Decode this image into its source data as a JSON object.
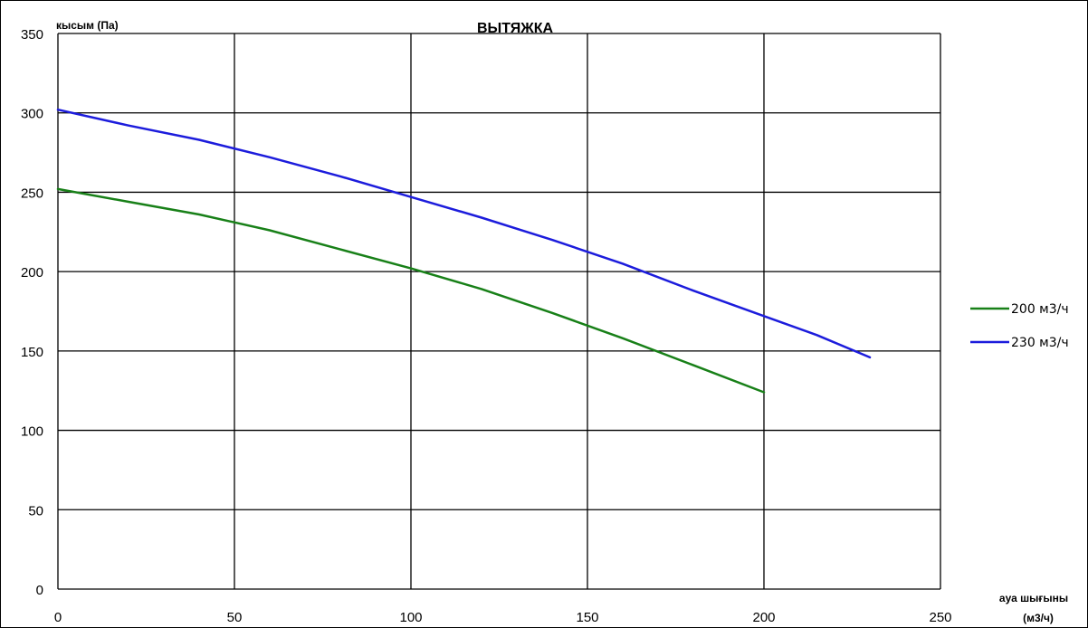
{
  "chart_data": {
    "type": "line",
    "title": "ВЫТЯЖКА",
    "ylabel": "кысым (Па)",
    "xlabel": [
      "ауа шығыны",
      "(м3/ч)"
    ],
    "xlim": [
      0,
      250
    ],
    "ylim": [
      0,
      350
    ],
    "x_ticks": [
      0,
      50,
      100,
      150,
      200,
      250
    ],
    "y_ticks": [
      0,
      50,
      100,
      150,
      200,
      250,
      300,
      350
    ],
    "grid": true,
    "legend_position": "right",
    "series": [
      {
        "name": "200 м3/ч",
        "color": "#188018",
        "x": [
          0,
          20,
          40,
          60,
          80,
          100,
          120,
          140,
          160,
          180,
          200
        ],
        "y": [
          252,
          244,
          236,
          226,
          214,
          202,
          189,
          174,
          158,
          141,
          124
        ]
      },
      {
        "name": "230 м3/ч",
        "color": "#1c1cdc",
        "x": [
          0,
          20,
          40,
          60,
          80,
          100,
          120,
          140,
          160,
          180,
          200,
          215,
          230
        ],
        "y": [
          302,
          292,
          283,
          272,
          260,
          247,
          234,
          220,
          205,
          188,
          172,
          160,
          146
        ]
      }
    ]
  }
}
